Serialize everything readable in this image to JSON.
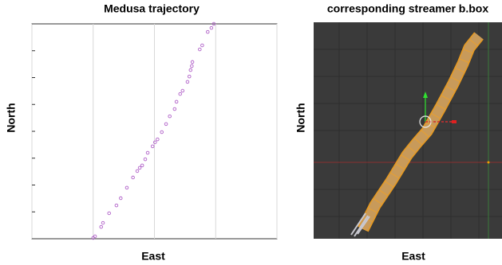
{
  "chart_data": [
    {
      "type": "scatter",
      "title": "Medusa trajectory",
      "xlabel": "East",
      "ylabel": "North",
      "x": [
        1.0,
        1.03,
        1.13,
        1.16,
        1.26,
        1.38,
        1.45,
        1.55,
        1.65,
        1.72,
        1.76,
        1.8,
        1.85,
        1.89,
        1.97,
        2.01,
        2.05,
        2.12,
        2.19,
        2.25,
        2.33,
        2.36,
        2.42,
        2.46,
        2.54,
        2.57,
        2.59,
        2.61,
        2.62,
        2.74,
        2.78,
        2.87,
        2.93,
        2.97
      ],
      "y": [
        0.03,
        0.09,
        0.44,
        0.59,
        0.95,
        1.24,
        1.51,
        1.9,
        2.28,
        2.52,
        2.64,
        2.73,
        2.96,
        3.2,
        3.44,
        3.59,
        3.7,
        3.97,
        4.27,
        4.56,
        4.83,
        5.1,
        5.39,
        5.51,
        5.84,
        6.04,
        6.28,
        6.43,
        6.58,
        7.05,
        7.2,
        7.7,
        7.85,
        8.0
      ],
      "color": "#b060c8",
      "xlim": [
        0,
        4
      ],
      "ylim": [
        0,
        8
      ],
      "xticks": [
        0,
        1,
        2,
        3,
        4
      ],
      "yticks": [
        0,
        1,
        2,
        3,
        4,
        5,
        6,
        7,
        8
      ],
      "grid": true
    }
  ],
  "viewport": {
    "title": "corresponding streamer b.box",
    "xlabel": "East",
    "ylabel": "North"
  }
}
